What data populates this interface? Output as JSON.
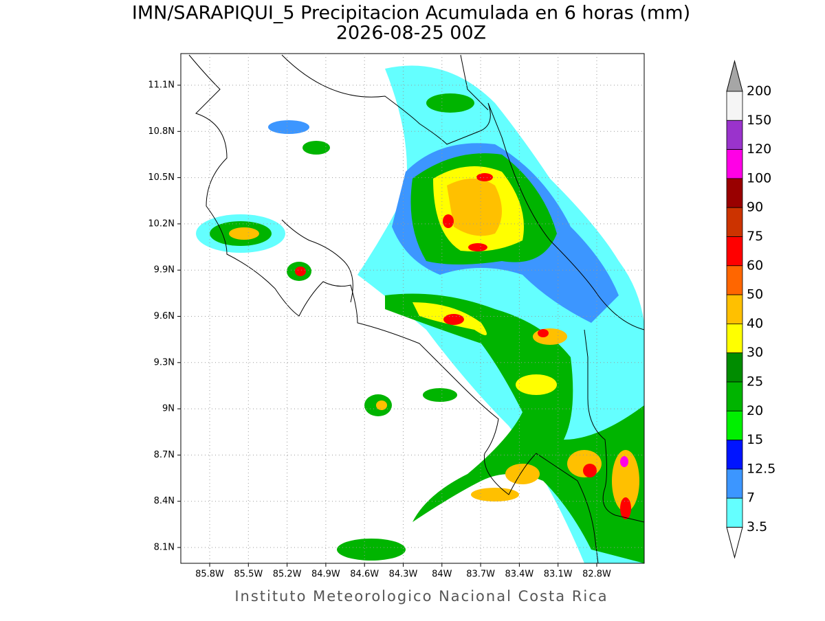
{
  "header": {
    "title": "IMN/SARAPIQUI_5 Precipitacion Acumulada en 6 horas (mm)",
    "subtitle": "2026-08-25 00Z"
  },
  "map": {
    "lat_labels": [
      "11.1N",
      "10.8N",
      "10.5N",
      "10.2N",
      "9.9N",
      "9.6N",
      "9.3N",
      "9N",
      "8.7N",
      "8.4N",
      "8.1N"
    ],
    "lon_labels": [
      "85.8W",
      "85.5W",
      "85.2W",
      "84.9W",
      "84.6W",
      "84.3W",
      "84W",
      "83.7W",
      "83.4W",
      "83.1W",
      "82.8W"
    ],
    "grid": true
  },
  "colorbar": {
    "levels": [
      "200",
      "150",
      "120",
      "100",
      "90",
      "75",
      "60",
      "50",
      "40",
      "30",
      "25",
      "20",
      "15",
      "12.5",
      "7",
      "3.5"
    ],
    "colors": [
      "#a6a6a6",
      "#f5f5f5",
      "#9a33cc",
      "#ff00e6",
      "#990000",
      "#cc3300",
      "#ff0000",
      "#ff6600",
      "#ffc000",
      "#ffff00",
      "#008c00",
      "#00b400",
      "#00f000",
      "#0014ff",
      "#3c96ff",
      "#64ffff",
      "#ffffff"
    ]
  },
  "footer": "Instituto Meteorologico Nacional Costa Rica"
}
